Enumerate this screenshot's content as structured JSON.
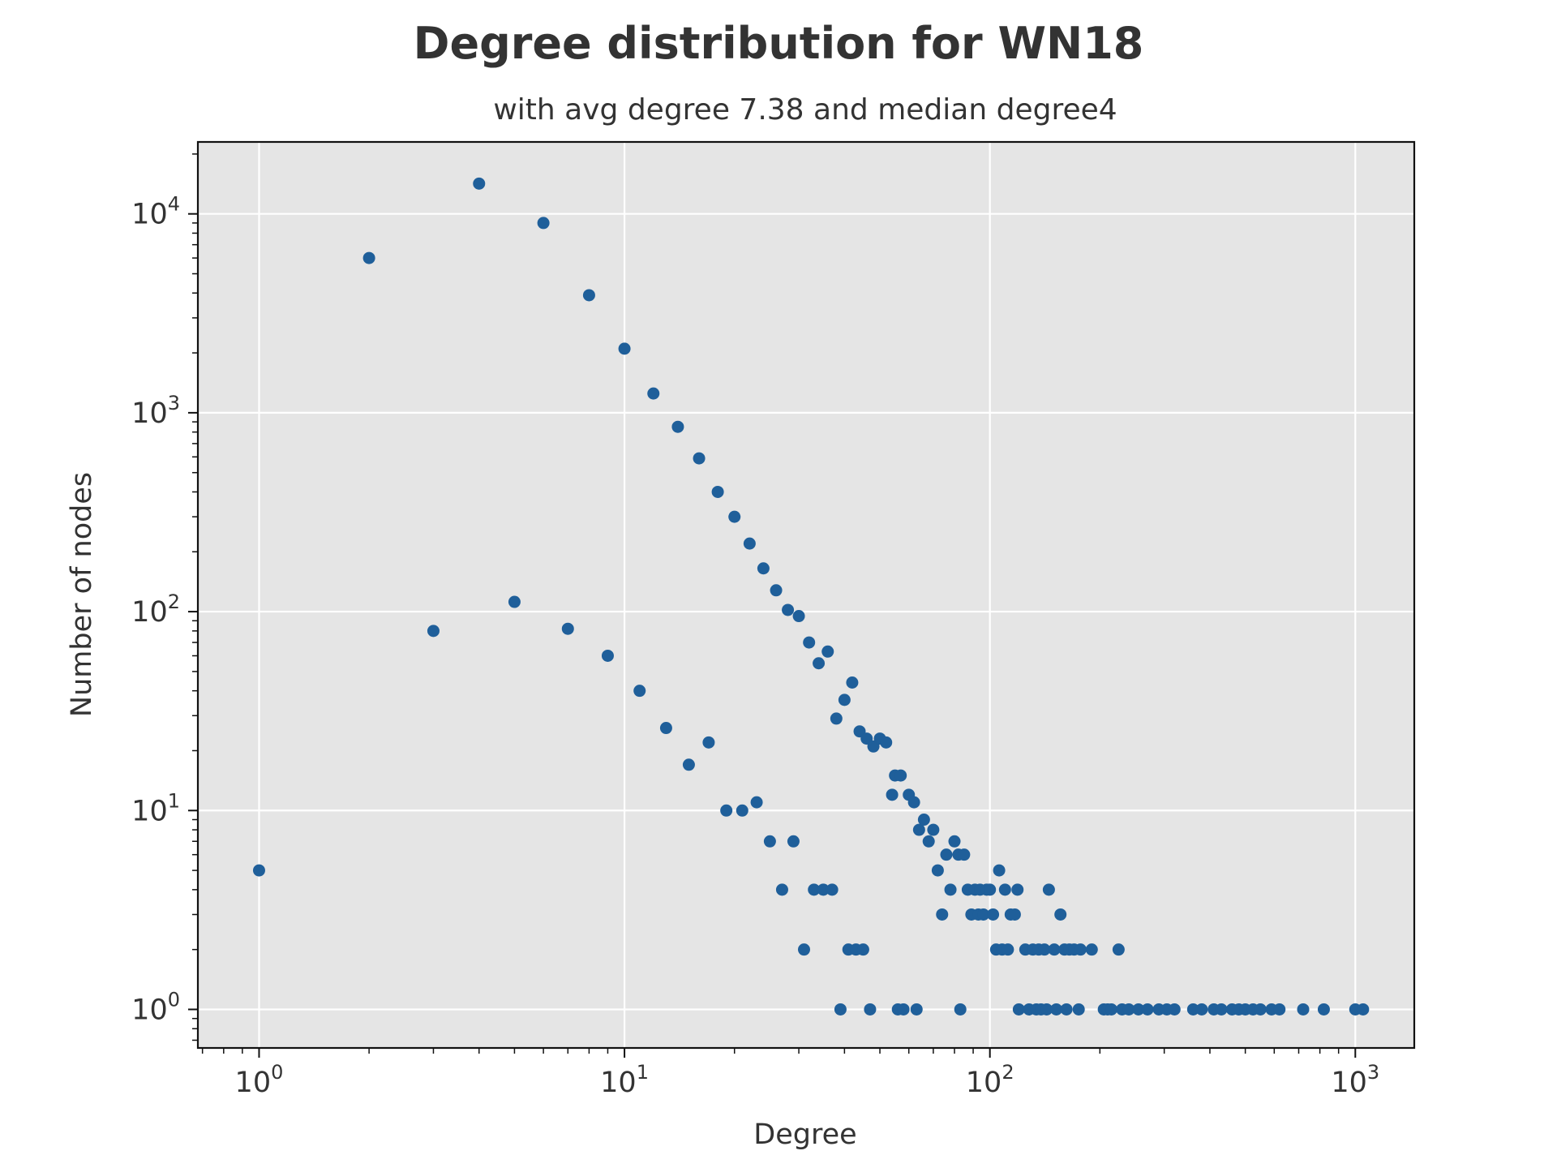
{
  "chart_data": {
    "type": "scatter",
    "title": "Degree distribution for WN18",
    "subtitle": "with avg degree 7.38 and median degree4",
    "xlabel": "Degree",
    "ylabel": "Number of nodes",
    "xscale": "log",
    "yscale": "log",
    "xlim": [
      0.68,
      1450
    ],
    "ylim": [
      0.64,
      23000
    ],
    "grid": true,
    "marker_color": "#1f5f9a",
    "background_color": "#e5e5e5",
    "grid_color": "#ffffff",
    "x_ticks": [
      {
        "base": "10",
        "exp": "0",
        "value": 1
      },
      {
        "base": "10",
        "exp": "1",
        "value": 10
      },
      {
        "base": "10",
        "exp": "2",
        "value": 100
      },
      {
        "base": "10",
        "exp": "3",
        "value": 1000
      }
    ],
    "y_ticks": [
      {
        "base": "10",
        "exp": "0",
        "value": 1
      },
      {
        "base": "10",
        "exp": "1",
        "value": 10
      },
      {
        "base": "10",
        "exp": "2",
        "value": 100
      },
      {
        "base": "10",
        "exp": "3",
        "value": 1000
      },
      {
        "base": "10",
        "exp": "4",
        "value": 10000
      }
    ],
    "points": [
      [
        1,
        5
      ],
      [
        2,
        6000
      ],
      [
        3,
        80
      ],
      [
        4,
        14200
      ],
      [
        5,
        112
      ],
      [
        6,
        9000
      ],
      [
        7,
        82
      ],
      [
        8,
        3900
      ],
      [
        9,
        60
      ],
      [
        10,
        2100
      ],
      [
        11,
        40
      ],
      [
        12,
        1250
      ],
      [
        13,
        26
      ],
      [
        14,
        850
      ],
      [
        15,
        17
      ],
      [
        16,
        590
      ],
      [
        17,
        22
      ],
      [
        18,
        400
      ],
      [
        19,
        10
      ],
      [
        20,
        300
      ],
      [
        21,
        10
      ],
      [
        22,
        220
      ],
      [
        23,
        11
      ],
      [
        24,
        165
      ],
      [
        25,
        7
      ],
      [
        26,
        128
      ],
      [
        27,
        4
      ],
      [
        28,
        102
      ],
      [
        29,
        7
      ],
      [
        30,
        95
      ],
      [
        31,
        2
      ],
      [
        32,
        70
      ],
      [
        33,
        4
      ],
      [
        34,
        55
      ],
      [
        35,
        4
      ],
      [
        36,
        63
      ],
      [
        37,
        4
      ],
      [
        38,
        29
      ],
      [
        39,
        1
      ],
      [
        40,
        36
      ],
      [
        41,
        2
      ],
      [
        42,
        44
      ],
      [
        43,
        2
      ],
      [
        44,
        25
      ],
      [
        45,
        2
      ],
      [
        46,
        23
      ],
      [
        47,
        1
      ],
      [
        48,
        21
      ],
      [
        50,
        23
      ],
      [
        52,
        22
      ],
      [
        54,
        12
      ],
      [
        55,
        15
      ],
      [
        56,
        1
      ],
      [
        57,
        15
      ],
      [
        58,
        1
      ],
      [
        60,
        12
      ],
      [
        62,
        11
      ],
      [
        63,
        1
      ],
      [
        64,
        8
      ],
      [
        66,
        9
      ],
      [
        68,
        7
      ],
      [
        70,
        8
      ],
      [
        72,
        5
      ],
      [
        74,
        3
      ],
      [
        76,
        6
      ],
      [
        78,
        4
      ],
      [
        80,
        7
      ],
      [
        82,
        6
      ],
      [
        83,
        1
      ],
      [
        85,
        6
      ],
      [
        87,
        4
      ],
      [
        89,
        3
      ],
      [
        91,
        4
      ],
      [
        93,
        3
      ],
      [
        94,
        4
      ],
      [
        96,
        3
      ],
      [
        98,
        4
      ],
      [
        100,
        4
      ],
      [
        102,
        3
      ],
      [
        104,
        2
      ],
      [
        106,
        5
      ],
      [
        108,
        2
      ],
      [
        110,
        4
      ],
      [
        112,
        2
      ],
      [
        114,
        3
      ],
      [
        117,
        3
      ],
      [
        119,
        4
      ],
      [
        120,
        1
      ],
      [
        125,
        2
      ],
      [
        128,
        1
      ],
      [
        131,
        2
      ],
      [
        134,
        1
      ],
      [
        136,
        2
      ],
      [
        138,
        1
      ],
      [
        141,
        2
      ],
      [
        143,
        1
      ],
      [
        145,
        4
      ],
      [
        150,
        2
      ],
      [
        152,
        1
      ],
      [
        156,
        3
      ],
      [
        160,
        2
      ],
      [
        162,
        1
      ],
      [
        165,
        2
      ],
      [
        170,
        2
      ],
      [
        175,
        1
      ],
      [
        177,
        2
      ],
      [
        190,
        2
      ],
      [
        205,
        1
      ],
      [
        210,
        1
      ],
      [
        215,
        1
      ],
      [
        225,
        2
      ],
      [
        230,
        1
      ],
      [
        240,
        1
      ],
      [
        255,
        1
      ],
      [
        270,
        1
      ],
      [
        290,
        1
      ],
      [
        305,
        1
      ],
      [
        320,
        1
      ],
      [
        360,
        1
      ],
      [
        380,
        1
      ],
      [
        410,
        1
      ],
      [
        430,
        1
      ],
      [
        460,
        1
      ],
      [
        480,
        1
      ],
      [
        500,
        1
      ],
      [
        525,
        1
      ],
      [
        550,
        1
      ],
      [
        590,
        1
      ],
      [
        620,
        1
      ],
      [
        720,
        1
      ],
      [
        820,
        1
      ],
      [
        1000,
        1
      ],
      [
        1050,
        1
      ]
    ]
  }
}
